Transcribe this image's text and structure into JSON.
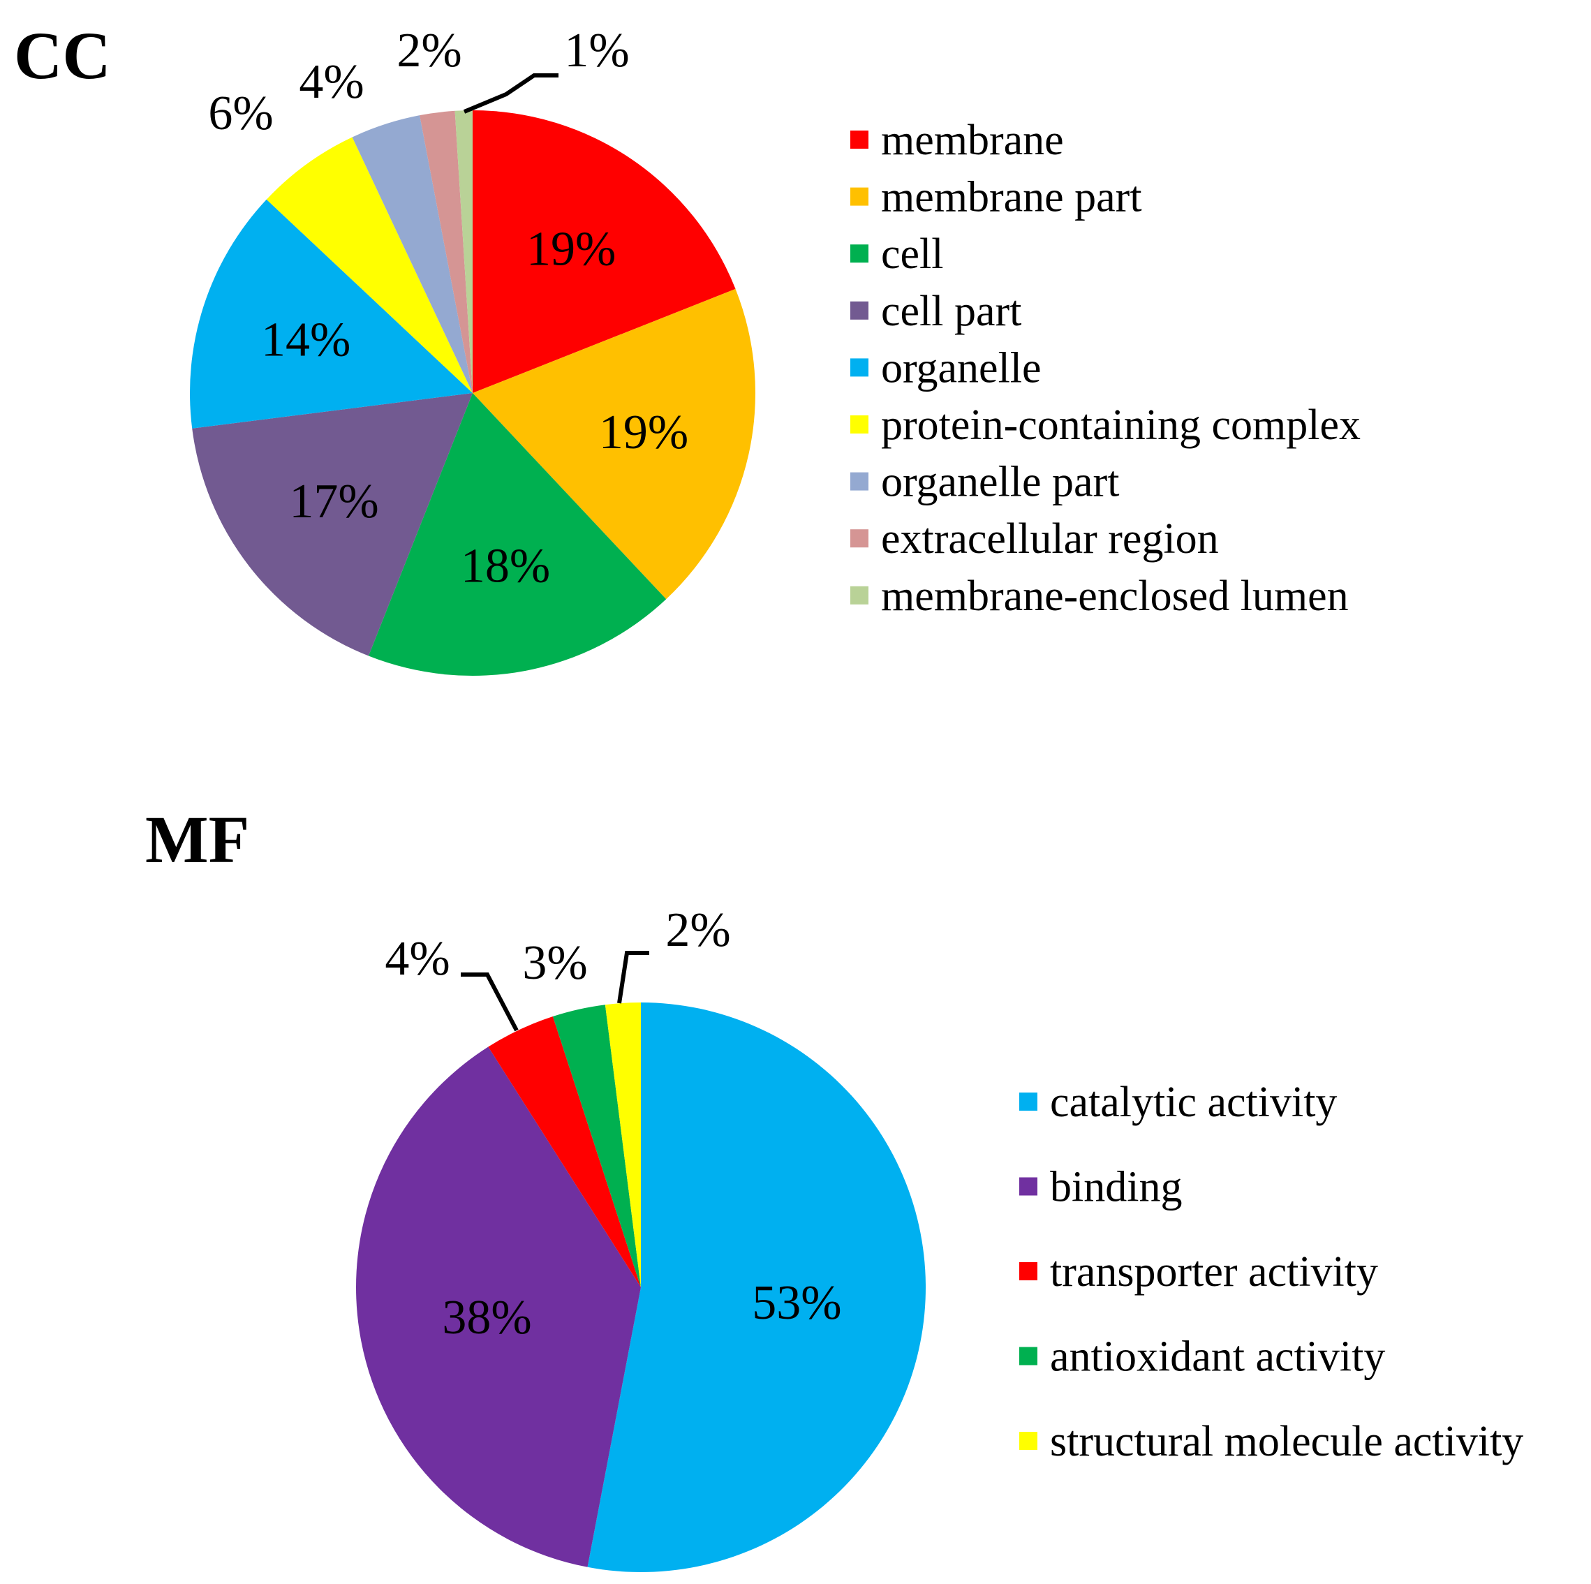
{
  "chart_data": [
    {
      "type": "pie",
      "title": "CC",
      "labels": [
        "membrane",
        "membrane part",
        "cell",
        "cell part",
        "organelle",
        "protein-containing complex",
        "organelle part",
        "extracellular region",
        "membrane-enclosed lumen"
      ],
      "values": [
        19,
        19,
        18,
        17,
        14,
        6,
        4,
        2,
        1
      ],
      "value_labels": [
        "19%",
        "19%",
        "18%",
        "17%",
        "14%",
        "6%",
        "4%",
        "2%",
        "1%"
      ],
      "colors": [
        "#ff0000",
        "#ffc000",
        "#00b050",
        "#725a91",
        "#00b0f0",
        "#ffff00",
        "#94a9d1",
        "#d59594",
        "#b9d297"
      ],
      "start": "12 o'clock",
      "direction": "clockwise",
      "legend_position": "right"
    },
    {
      "type": "pie",
      "title": "MF",
      "labels": [
        "catalytic activity",
        "binding",
        "transporter activity",
        "antioxidant activity",
        "structural molecule activity"
      ],
      "values": [
        53,
        38,
        4,
        3,
        2
      ],
      "value_labels": [
        "53%",
        "38%",
        "4%",
        "3%",
        "2%"
      ],
      "colors": [
        "#00b0f0",
        "#7030a0",
        "#ff0000",
        "#00b050",
        "#ffff00"
      ],
      "start": "12 o'clock",
      "direction": "clockwise",
      "legend_position": "right"
    }
  ]
}
